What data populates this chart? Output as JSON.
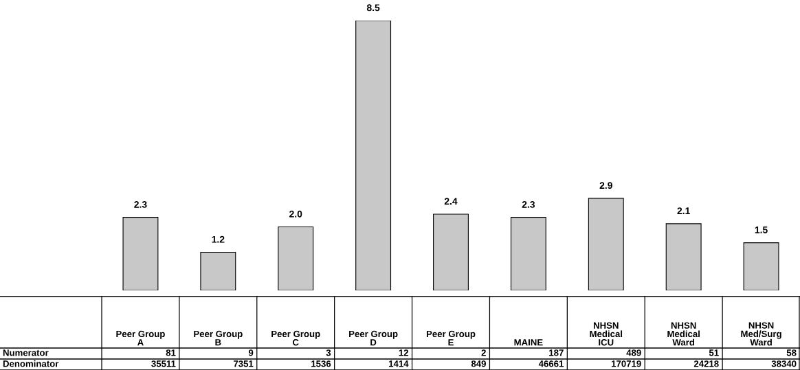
{
  "chart_data": {
    "type": "bar",
    "categories": [
      "Peer Group\nA",
      "Peer Group\nB",
      "Peer Group\nC",
      "Peer Group\nD",
      "Peer Group\nE",
      "MAINE",
      "NHSN\nMedical\nICU",
      "NHSN\nMedical\nWard",
      "NHSN\nMed/Surg\nWard"
    ],
    "values": [
      2.3,
      1.2,
      2.0,
      8.5,
      2.4,
      2.3,
      2.9,
      2.1,
      1.5
    ],
    "value_labels": [
      "2.3",
      "1.2",
      "2.0",
      "8.5",
      "2.4",
      "2.3",
      "2.9",
      "2.1",
      "1.5"
    ],
    "color": "#c8c8c8",
    "annotations": [
      "Numerator",
      "81",
      "9",
      "3",
      "12",
      "2",
      "187",
      "489",
      "51",
      "58",
      "Denominator",
      "35511",
      "7351",
      "1536",
      "1414",
      "849",
      "46661",
      "170719",
      "24218",
      "38340"
    ]
  }
}
